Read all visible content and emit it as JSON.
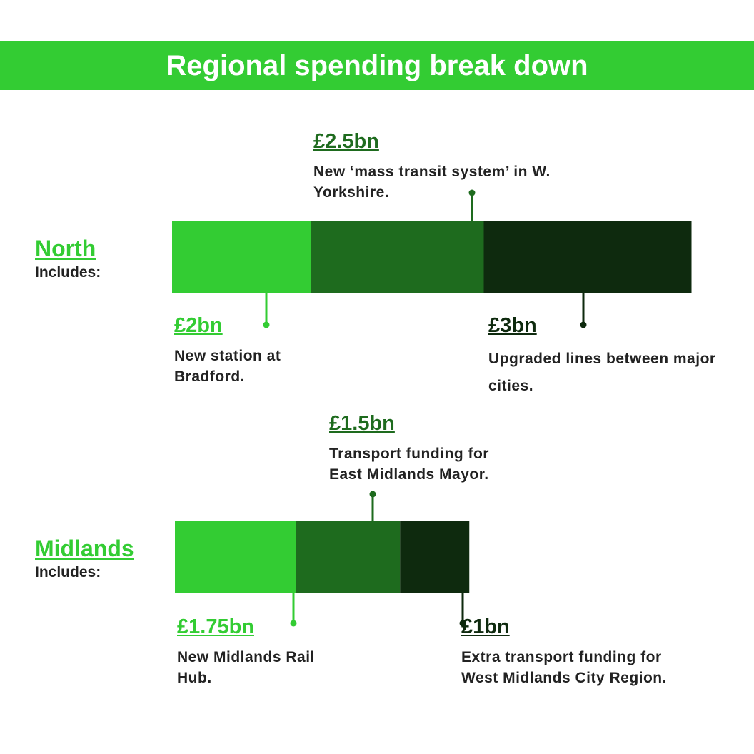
{
  "header": {
    "title": "Regional spending break down"
  },
  "colors": {
    "banner": "#33cc33",
    "segment_1": "#33cc33",
    "segment_2": "#1e6b1e",
    "segment_3": "#0e2a0e"
  },
  "chart_data": [
    {
      "type": "bar",
      "orientation": "horizontal-stacked",
      "region": "North",
      "subtitle": "Includes:",
      "segments": [
        {
          "amount_label": "£2bn",
          "value": 2,
          "description": "New station at Bradford."
        },
        {
          "amount_label": "£2.5bn",
          "value": 2.5,
          "description": "New ‘mass transit system’ in W. Yorkshire."
        },
        {
          "amount_label": "£3bn",
          "value": 3,
          "description": "Upgraded lines between major cities."
        }
      ]
    },
    {
      "type": "bar",
      "orientation": "horizontal-stacked",
      "region": "Midlands",
      "subtitle": "Includes:",
      "segments": [
        {
          "amount_label": "£1.75bn",
          "value": 1.75,
          "description": "New Midlands Rail Hub."
        },
        {
          "amount_label": "£1.5bn",
          "value": 1.5,
          "description": "Transport funding for East Midlands Mayor."
        },
        {
          "amount_label": "£1bn",
          "value": 1,
          "description": "Extra transport funding for West Midlands City Region."
        }
      ]
    }
  ]
}
